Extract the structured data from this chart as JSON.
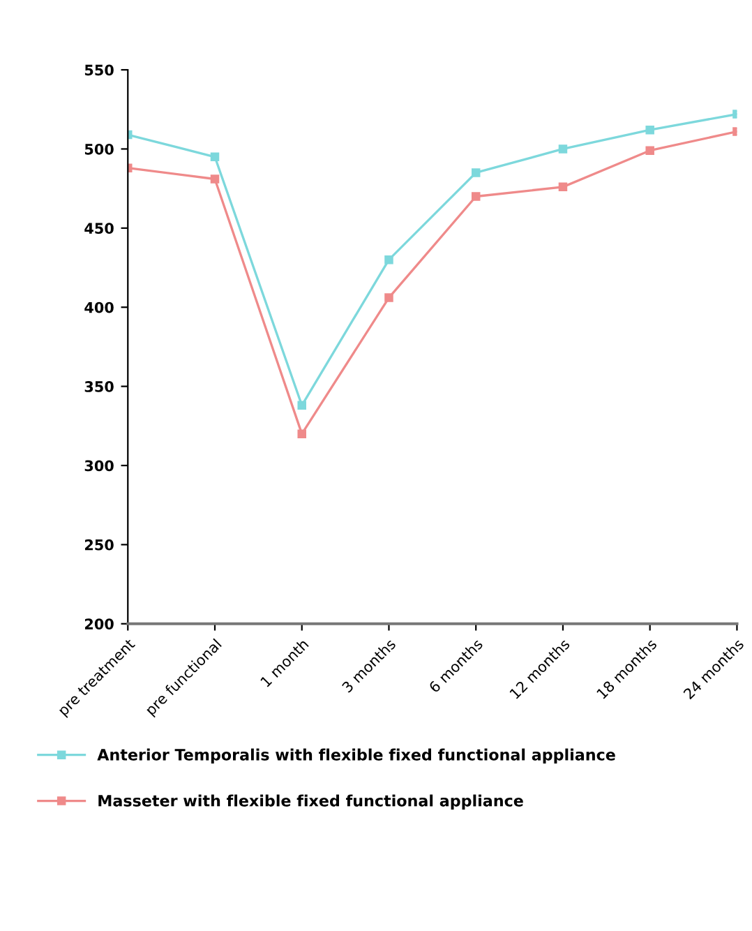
{
  "chart_data": {
    "type": "line",
    "categories": [
      "pre treatment",
      "pre functional",
      "1 month",
      "3 months",
      "6 months",
      "12 months",
      "18 months",
      "24 months"
    ],
    "series": [
      {
        "name": "Anterior Temporalis with flexible fixed functional appliance",
        "color": "#7dd8dc",
        "values": [
          509,
          495,
          338,
          430,
          485,
          500,
          512,
          522
        ]
      },
      {
        "name": "Masseter with flexible fixed functional appliance",
        "color": "#ef8a8a",
        "values": [
          488,
          481,
          320,
          406,
          470,
          476,
          499,
          511
        ]
      }
    ],
    "ylim": [
      200,
      550
    ],
    "yticks": [
      200,
      250,
      300,
      350,
      400,
      450,
      500,
      550
    ],
    "grid": false,
    "legend": "bottom",
    "marker": "square",
    "line_style": "solid"
  }
}
